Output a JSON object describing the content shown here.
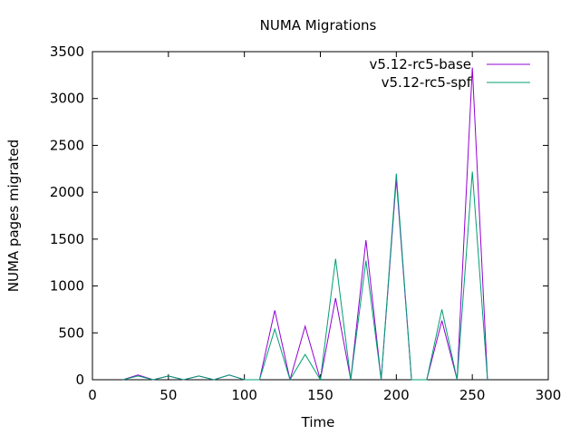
{
  "chart_data": {
    "type": "line",
    "title": "NUMA Migrations",
    "xlabel": "Time",
    "ylabel": "NUMA pages migrated",
    "xlim": [
      0,
      300
    ],
    "ylim": [
      0,
      3500
    ],
    "xticks": [
      0,
      50,
      100,
      150,
      200,
      250,
      300
    ],
    "yticks": [
      0,
      500,
      1000,
      1500,
      2000,
      2500,
      3000,
      3500
    ],
    "xtick_labels": [
      "0",
      "50",
      "100",
      "150",
      "200",
      "250",
      "300"
    ],
    "ytick_labels": [
      "0",
      "500",
      "1000",
      "1500",
      "2000",
      "2500",
      "3000",
      "3500"
    ],
    "grid": false,
    "legend_position": "top-right",
    "series": [
      {
        "name": "v5.12-rc5-base",
        "color": "#9400d3",
        "x": [
          20,
          30,
          40,
          50,
          60,
          70,
          80,
          90,
          100,
          110,
          120,
          130,
          140,
          150,
          160,
          170,
          180,
          190,
          200,
          210,
          220,
          230,
          240,
          250,
          260
        ],
        "y": [
          0,
          50,
          0,
          40,
          0,
          40,
          0,
          50,
          0,
          0,
          740,
          0,
          570,
          0,
          870,
          0,
          1490,
          0,
          2140,
          0,
          0,
          630,
          0,
          3330,
          0
        ]
      },
      {
        "name": "v5.12-rc5-spf",
        "color": "#009e73",
        "x": [
          20,
          30,
          40,
          50,
          60,
          70,
          80,
          90,
          100,
          110,
          120,
          130,
          140,
          150,
          160,
          170,
          180,
          190,
          200,
          210,
          220,
          230,
          240,
          250,
          260
        ],
        "y": [
          0,
          40,
          0,
          40,
          0,
          40,
          0,
          50,
          0,
          0,
          540,
          0,
          270,
          0,
          1290,
          0,
          1270,
          0,
          2200,
          0,
          0,
          750,
          0,
          2220,
          0
        ]
      }
    ]
  }
}
